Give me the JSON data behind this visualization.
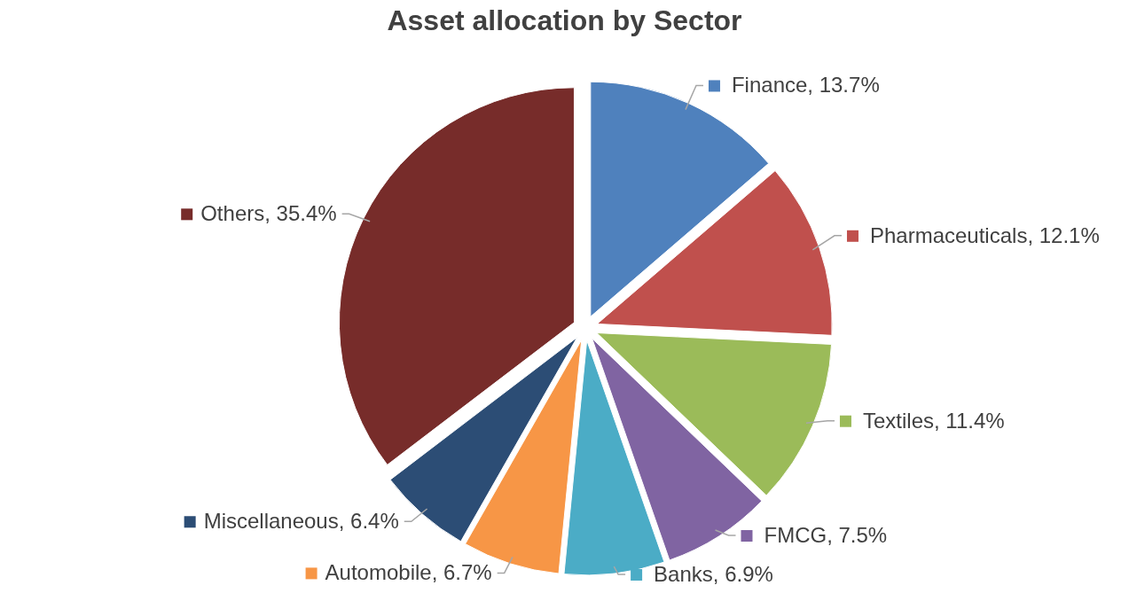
{
  "chart_data": {
    "type": "pie",
    "title": "Asset allocation by Sector",
    "categories": [
      "Finance",
      "Pharmaceuticals",
      "Textiles",
      "FMCG",
      "Banks",
      "Automobile",
      "Miscellaneous",
      "Others"
    ],
    "values": [
      13.7,
      12.1,
      11.4,
      7.5,
      6.9,
      6.7,
      6.4,
      35.4
    ],
    "value_labels": [
      "13.7%",
      "12.1%",
      "11.4%",
      "7.5%",
      "6.9%",
      "6.7%",
      "6.4%",
      "35.4%"
    ],
    "legend": "right",
    "colors": [
      "#4f81bd",
      "#c0504d",
      "#9bbb59",
      "#8064a2",
      "#4bacc6",
      "#f79646",
      "#2c4d75",
      "#772c2a"
    ]
  }
}
